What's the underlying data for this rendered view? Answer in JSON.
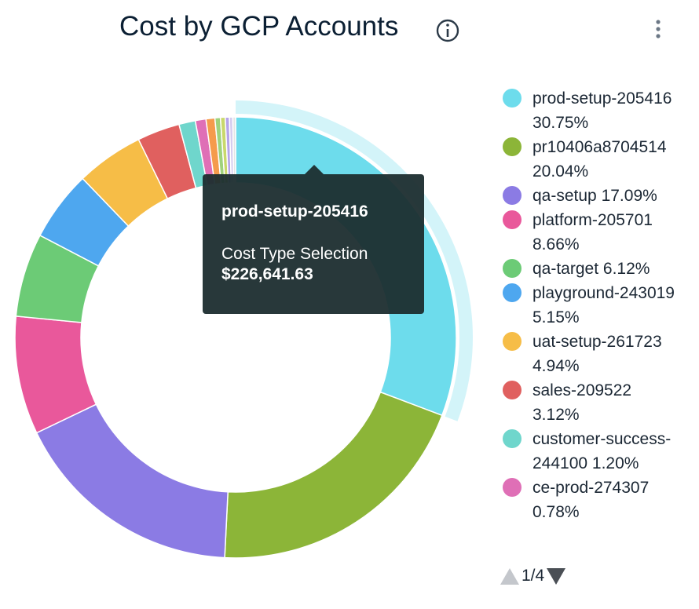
{
  "chart_data": {
    "type": "donut",
    "title": "Cost by GCP Accounts",
    "categories": [
      "prod-setup-205416",
      "pr10406a8704514",
      "qa-setup",
      "platform-205701",
      "qa-target",
      "playground-243019",
      "uat-setup-261723",
      "sales-209522",
      "customer-success-244100",
      "ce-prod-274307",
      null,
      null,
      null,
      null,
      null,
      null
    ],
    "values": [
      30.75,
      20.04,
      17.09,
      8.66,
      6.12,
      5.15,
      4.94,
      3.12,
      1.2,
      0.78,
      0.65,
      0.4,
      0.35,
      0.3,
      0.25,
      0.2
    ],
    "value_labels": [
      "30.75%",
      "20.04%",
      "17.09%",
      "8.66%",
      "6.12%",
      "5.15%",
      "4.94%",
      "3.12%",
      "1.20%",
      "0.78%",
      null,
      null,
      null,
      null,
      null,
      null
    ],
    "colors": [
      "#6ddcec",
      "#8cb538",
      "#8b7be4",
      "#e9589b",
      "#6ccb76",
      "#4ea7ef",
      "#f6bd47",
      "#e0605f",
      "#6fd6cc",
      "#df6fb6",
      "#f59b4c",
      "#9fd27c",
      "#c9d86b",
      "#b6a4e9",
      "#d5cdef",
      "#e4e4e4"
    ],
    "highlight": 0,
    "tooltip": {
      "name": "prod-setup-205416",
      "measure": "Cost Type Selection",
      "value_label": "$226,641.63"
    },
    "page": "1/4"
  }
}
